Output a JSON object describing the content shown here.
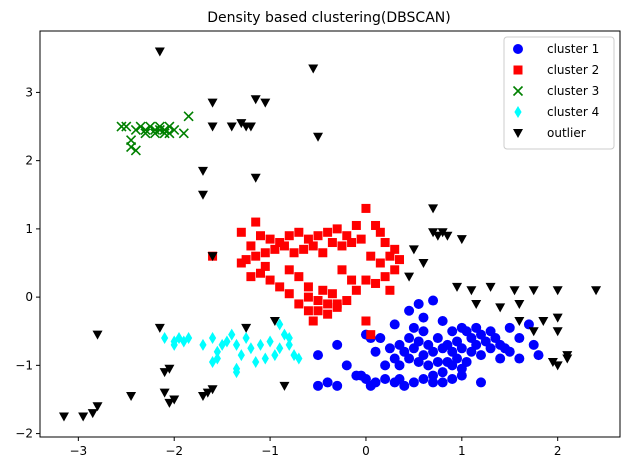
{
  "chart_data": {
    "type": "scatter",
    "title": "Density based clustering(DBSCAN)",
    "xlabel": "",
    "ylabel": "",
    "xlim": [
      -3.4,
      2.65
    ],
    "ylim": [
      -2.05,
      3.9
    ],
    "xticks": [
      -3,
      -2,
      -1,
      0,
      1,
      2
    ],
    "yticks": [
      -2,
      -1,
      0,
      1,
      2,
      3
    ],
    "xtick_labels": [
      "−3",
      "−2",
      "−1",
      "0",
      "1",
      "2"
    ],
    "ytick_labels": [
      "−2",
      "−1",
      "0",
      "1",
      "2",
      "3"
    ],
    "grid": false,
    "legend_position": "top-right",
    "series": [
      {
        "name": "cluster 1",
        "marker": "circle",
        "color": "#0000ff",
        "points": [
          [
            0.3,
            -0.4
          ],
          [
            0.45,
            -0.2
          ],
          [
            0.55,
            -0.1
          ],
          [
            0.6,
            -0.3
          ],
          [
            0.7,
            -0.05
          ],
          [
            0.8,
            -0.35
          ],
          [
            0.9,
            -0.5
          ],
          [
            1.0,
            -0.45
          ],
          [
            1.1,
            -0.6
          ],
          [
            1.2,
            -0.55
          ],
          [
            1.3,
            -0.5
          ],
          [
            1.4,
            -0.7
          ],
          [
            1.5,
            -0.45
          ],
          [
            1.6,
            -0.6
          ],
          [
            1.7,
            -0.4
          ],
          [
            1.75,
            -0.7
          ],
          [
            1.8,
            -0.85
          ],
          [
            1.6,
            -0.9
          ],
          [
            1.5,
            -0.8
          ],
          [
            1.4,
            -0.9
          ],
          [
            1.3,
            -0.75
          ],
          [
            1.2,
            -0.85
          ],
          [
            1.1,
            -0.8
          ],
          [
            1.0,
            -0.75
          ],
          [
            0.95,
            -0.65
          ],
          [
            0.9,
            -0.8
          ],
          [
            0.85,
            -0.7
          ],
          [
            0.8,
            -0.75
          ],
          [
            0.75,
            -0.6
          ],
          [
            0.7,
            -0.8
          ],
          [
            0.65,
            -0.7
          ],
          [
            0.6,
            -0.85
          ],
          [
            0.55,
            -0.65
          ],
          [
            0.5,
            -0.75
          ],
          [
            0.45,
            -0.6
          ],
          [
            0.4,
            -0.8
          ],
          [
            0.35,
            -0.7
          ],
          [
            0.3,
            -0.9
          ],
          [
            0.25,
            -0.75
          ],
          [
            0.2,
            -1.0
          ],
          [
            0.15,
            -0.6
          ],
          [
            0.1,
            -0.8
          ],
          [
            0.05,
            -0.6
          ],
          [
            0.0,
            -0.55
          ],
          [
            0.95,
            -0.9
          ],
          [
            1.05,
            -0.95
          ],
          [
            1.15,
            -0.7
          ],
          [
            1.25,
            -0.65
          ],
          [
            1.35,
            -0.6
          ],
          [
            1.45,
            -0.75
          ],
          [
            0.85,
            -0.95
          ],
          [
            0.75,
            -0.95
          ],
          [
            0.65,
            -1.0
          ],
          [
            0.55,
            -0.95
          ],
          [
            0.45,
            -0.9
          ],
          [
            0.35,
            -1.0
          ],
          [
            0.9,
            -1.0
          ],
          [
            1.0,
            -1.05
          ],
          [
            0.8,
            -1.1
          ],
          [
            0.7,
            -1.15
          ],
          [
            -0.5,
            -0.85
          ],
          [
            -0.3,
            -0.7
          ],
          [
            -0.2,
            -1.0
          ],
          [
            -0.1,
            -1.15
          ],
          [
            0.0,
            -1.2
          ],
          [
            0.1,
            -1.25
          ],
          [
            0.2,
            -1.2
          ],
          [
            0.3,
            -1.25
          ],
          [
            0.4,
            -1.3
          ],
          [
            0.5,
            -1.25
          ],
          [
            0.6,
            -1.2
          ],
          [
            0.7,
            -1.25
          ],
          [
            0.8,
            -1.25
          ],
          [
            0.9,
            -1.2
          ],
          [
            1.0,
            -1.15
          ],
          [
            1.2,
            -1.25
          ],
          [
            -0.5,
            -1.3
          ],
          [
            -0.4,
            -1.25
          ],
          [
            -0.3,
            -1.3
          ],
          [
            0.05,
            -1.3
          ],
          [
            -0.05,
            -1.15
          ],
          [
            0.35,
            -1.2
          ],
          [
            1.05,
            -0.5
          ],
          [
            1.15,
            -0.45
          ],
          [
            0.6,
            -0.5
          ],
          [
            0.5,
            -0.45
          ]
        ]
      },
      {
        "name": "cluster 2",
        "marker": "square",
        "color": "#ff0000",
        "points": [
          [
            -1.6,
            0.6
          ],
          [
            -1.3,
            0.95
          ],
          [
            -1.15,
            1.1
          ],
          [
            -1.2,
            0.75
          ],
          [
            -1.1,
            0.9
          ],
          [
            -1.0,
            0.85
          ],
          [
            -0.9,
            0.8
          ],
          [
            -0.8,
            0.9
          ],
          [
            -0.7,
            0.95
          ],
          [
            -0.6,
            0.85
          ],
          [
            -0.5,
            0.9
          ],
          [
            -0.4,
            0.95
          ],
          [
            -0.3,
            1.0
          ],
          [
            -0.2,
            0.9
          ],
          [
            -0.1,
            1.05
          ],
          [
            0.0,
            1.3
          ],
          [
            0.1,
            1.05
          ],
          [
            0.2,
            0.8
          ],
          [
            0.3,
            0.7
          ],
          [
            0.35,
            0.55
          ],
          [
            -1.25,
            0.55
          ],
          [
            -1.15,
            0.6
          ],
          [
            -1.05,
            0.65
          ],
          [
            -0.95,
            0.7
          ],
          [
            -0.85,
            0.75
          ],
          [
            -0.75,
            0.65
          ],
          [
            -0.65,
            0.7
          ],
          [
            -0.55,
            0.75
          ],
          [
            -0.45,
            0.65
          ],
          [
            -0.35,
            0.8
          ],
          [
            -0.25,
            0.75
          ],
          [
            -0.15,
            0.8
          ],
          [
            -0.05,
            0.85
          ],
          [
            0.05,
            0.6
          ],
          [
            0.15,
            0.5
          ],
          [
            0.2,
            0.3
          ],
          [
            0.25,
            0.1
          ],
          [
            0.1,
            0.2
          ],
          [
            0.0,
            0.25
          ],
          [
            -0.1,
            0.1
          ],
          [
            -0.2,
            -0.05
          ],
          [
            -0.3,
            -0.15
          ],
          [
            -0.4,
            -0.1
          ],
          [
            -0.5,
            -0.05
          ],
          [
            -0.6,
            0.0
          ],
          [
            -0.7,
            -0.1
          ],
          [
            -0.8,
            0.05
          ],
          [
            -0.9,
            0.15
          ],
          [
            -1.0,
            0.25
          ],
          [
            -1.1,
            0.35
          ],
          [
            -0.55,
            -0.35
          ],
          [
            -0.6,
            -0.2
          ],
          [
            -0.5,
            -0.2
          ],
          [
            -0.4,
            -0.25
          ],
          [
            -0.3,
            -0.1
          ],
          [
            -0.7,
            0.3
          ],
          [
            -0.8,
            0.4
          ],
          [
            0.0,
            -0.35
          ],
          [
            0.05,
            -0.55
          ],
          [
            0.3,
            0.4
          ],
          [
            0.25,
            0.6
          ],
          [
            -0.6,
            0.15
          ],
          [
            -0.45,
            0.1
          ],
          [
            -0.35,
            0.05
          ],
          [
            -1.2,
            0.3
          ],
          [
            -1.3,
            0.5
          ],
          [
            -1.05,
            0.45
          ],
          [
            0.15,
            0.95
          ],
          [
            -0.25,
            0.4
          ],
          [
            -0.15,
            0.25
          ]
        ]
      },
      {
        "name": "cluster 3",
        "marker": "x",
        "color": "#008000",
        "points": [
          [
            -2.5,
            2.5
          ],
          [
            -2.4,
            2.45
          ],
          [
            -2.35,
            2.5
          ],
          [
            -2.3,
            2.45
          ],
          [
            -2.25,
            2.5
          ],
          [
            -2.2,
            2.45
          ],
          [
            -2.15,
            2.5
          ],
          [
            -2.1,
            2.45
          ],
          [
            -2.05,
            2.4
          ],
          [
            -2.0,
            2.45
          ],
          [
            -1.9,
            2.4
          ],
          [
            -1.85,
            2.65
          ],
          [
            -2.45,
            2.3
          ],
          [
            -2.45,
            2.2
          ],
          [
            -2.4,
            2.15
          ],
          [
            -2.2,
            2.4
          ],
          [
            -2.1,
            2.4
          ],
          [
            -2.3,
            2.4
          ],
          [
            -2.15,
            2.45
          ],
          [
            -2.05,
            2.5
          ],
          [
            -2.55,
            2.5
          ]
        ]
      },
      {
        "name": "cluster 4",
        "marker": "diamond",
        "color": "#00ffff",
        "points": [
          [
            -2.1,
            -0.6
          ],
          [
            -2.0,
            -0.65
          ],
          [
            -1.95,
            -0.6
          ],
          [
            -1.9,
            -0.65
          ],
          [
            -1.85,
            -0.6
          ],
          [
            -1.7,
            -0.7
          ],
          [
            -1.6,
            -0.6
          ],
          [
            -1.55,
            -0.8
          ],
          [
            -1.5,
            -0.7
          ],
          [
            -1.45,
            -0.65
          ],
          [
            -1.4,
            -0.55
          ],
          [
            -1.35,
            -0.7
          ],
          [
            -1.3,
            -0.85
          ],
          [
            -1.25,
            -0.6
          ],
          [
            -1.2,
            -0.75
          ],
          [
            -1.1,
            -0.7
          ],
          [
            -1.0,
            -0.65
          ],
          [
            -0.9,
            -0.75
          ],
          [
            -0.85,
            -0.55
          ],
          [
            -0.8,
            -0.7
          ],
          [
            -0.75,
            -0.85
          ],
          [
            -0.7,
            -0.9
          ],
          [
            -0.9,
            -0.4
          ],
          [
            -1.05,
            -0.9
          ],
          [
            -1.15,
            -0.95
          ],
          [
            -1.35,
            -1.05
          ],
          [
            -1.35,
            -1.1
          ],
          [
            -1.55,
            -0.9
          ],
          [
            -1.6,
            -0.95
          ],
          [
            -2.0,
            -0.7
          ],
          [
            -0.95,
            -0.85
          ],
          [
            -0.8,
            -0.6
          ]
        ]
      },
      {
        "name": "outlier",
        "marker": "triangle-down",
        "color": "#000000",
        "points": [
          [
            -2.15,
            3.6
          ],
          [
            -0.55,
            3.35
          ],
          [
            -0.5,
            2.35
          ],
          [
            -1.6,
            2.85
          ],
          [
            -1.15,
            2.9
          ],
          [
            -1.05,
            2.85
          ],
          [
            -1.6,
            2.5
          ],
          [
            -1.4,
            2.5
          ],
          [
            -1.3,
            2.55
          ],
          [
            -1.25,
            2.5
          ],
          [
            -1.2,
            2.5
          ],
          [
            -1.7,
            1.85
          ],
          [
            -1.7,
            1.5
          ],
          [
            -1.15,
            1.75
          ],
          [
            -1.6,
            0.6
          ],
          [
            0.7,
            1.3
          ],
          [
            0.7,
            0.95
          ],
          [
            0.75,
            0.9
          ],
          [
            0.8,
            0.95
          ],
          [
            0.85,
            0.9
          ],
          [
            1.0,
            0.85
          ],
          [
            0.5,
            0.7
          ],
          [
            0.6,
            0.5
          ],
          [
            0.45,
            0.3
          ],
          [
            0.95,
            0.15
          ],
          [
            1.1,
            0.1
          ],
          [
            1.3,
            0.15
          ],
          [
            1.55,
            0.1
          ],
          [
            1.75,
            0.1
          ],
          [
            2.0,
            0.1
          ],
          [
            2.4,
            0.1
          ],
          [
            1.15,
            -0.1
          ],
          [
            1.4,
            -0.15
          ],
          [
            1.6,
            -0.1
          ],
          [
            1.6,
            -0.35
          ],
          [
            1.75,
            -0.5
          ],
          [
            2.0,
            -0.3
          ],
          [
            2.0,
            -0.5
          ],
          [
            1.85,
            -0.35
          ],
          [
            1.95,
            -0.95
          ],
          [
            2.0,
            -1.0
          ],
          [
            2.1,
            -0.85
          ],
          [
            2.1,
            -0.9
          ],
          [
            -0.95,
            -0.35
          ],
          [
            -1.25,
            -0.45
          ],
          [
            -2.8,
            -0.55
          ],
          [
            -2.15,
            -0.45
          ],
          [
            -2.05,
            -1.05
          ],
          [
            -2.1,
            -1.1
          ],
          [
            -2.1,
            -1.4
          ],
          [
            -2.05,
            -1.55
          ],
          [
            -2.0,
            -1.5
          ],
          [
            -1.7,
            -1.45
          ],
          [
            -1.65,
            -1.4
          ],
          [
            -1.6,
            -1.35
          ],
          [
            -2.45,
            -1.45
          ],
          [
            -2.8,
            -1.6
          ],
          [
            -2.85,
            -1.7
          ],
          [
            -2.95,
            -1.75
          ],
          [
            -3.15,
            -1.75
          ],
          [
            -0.85,
            -1.3
          ]
        ]
      }
    ]
  }
}
